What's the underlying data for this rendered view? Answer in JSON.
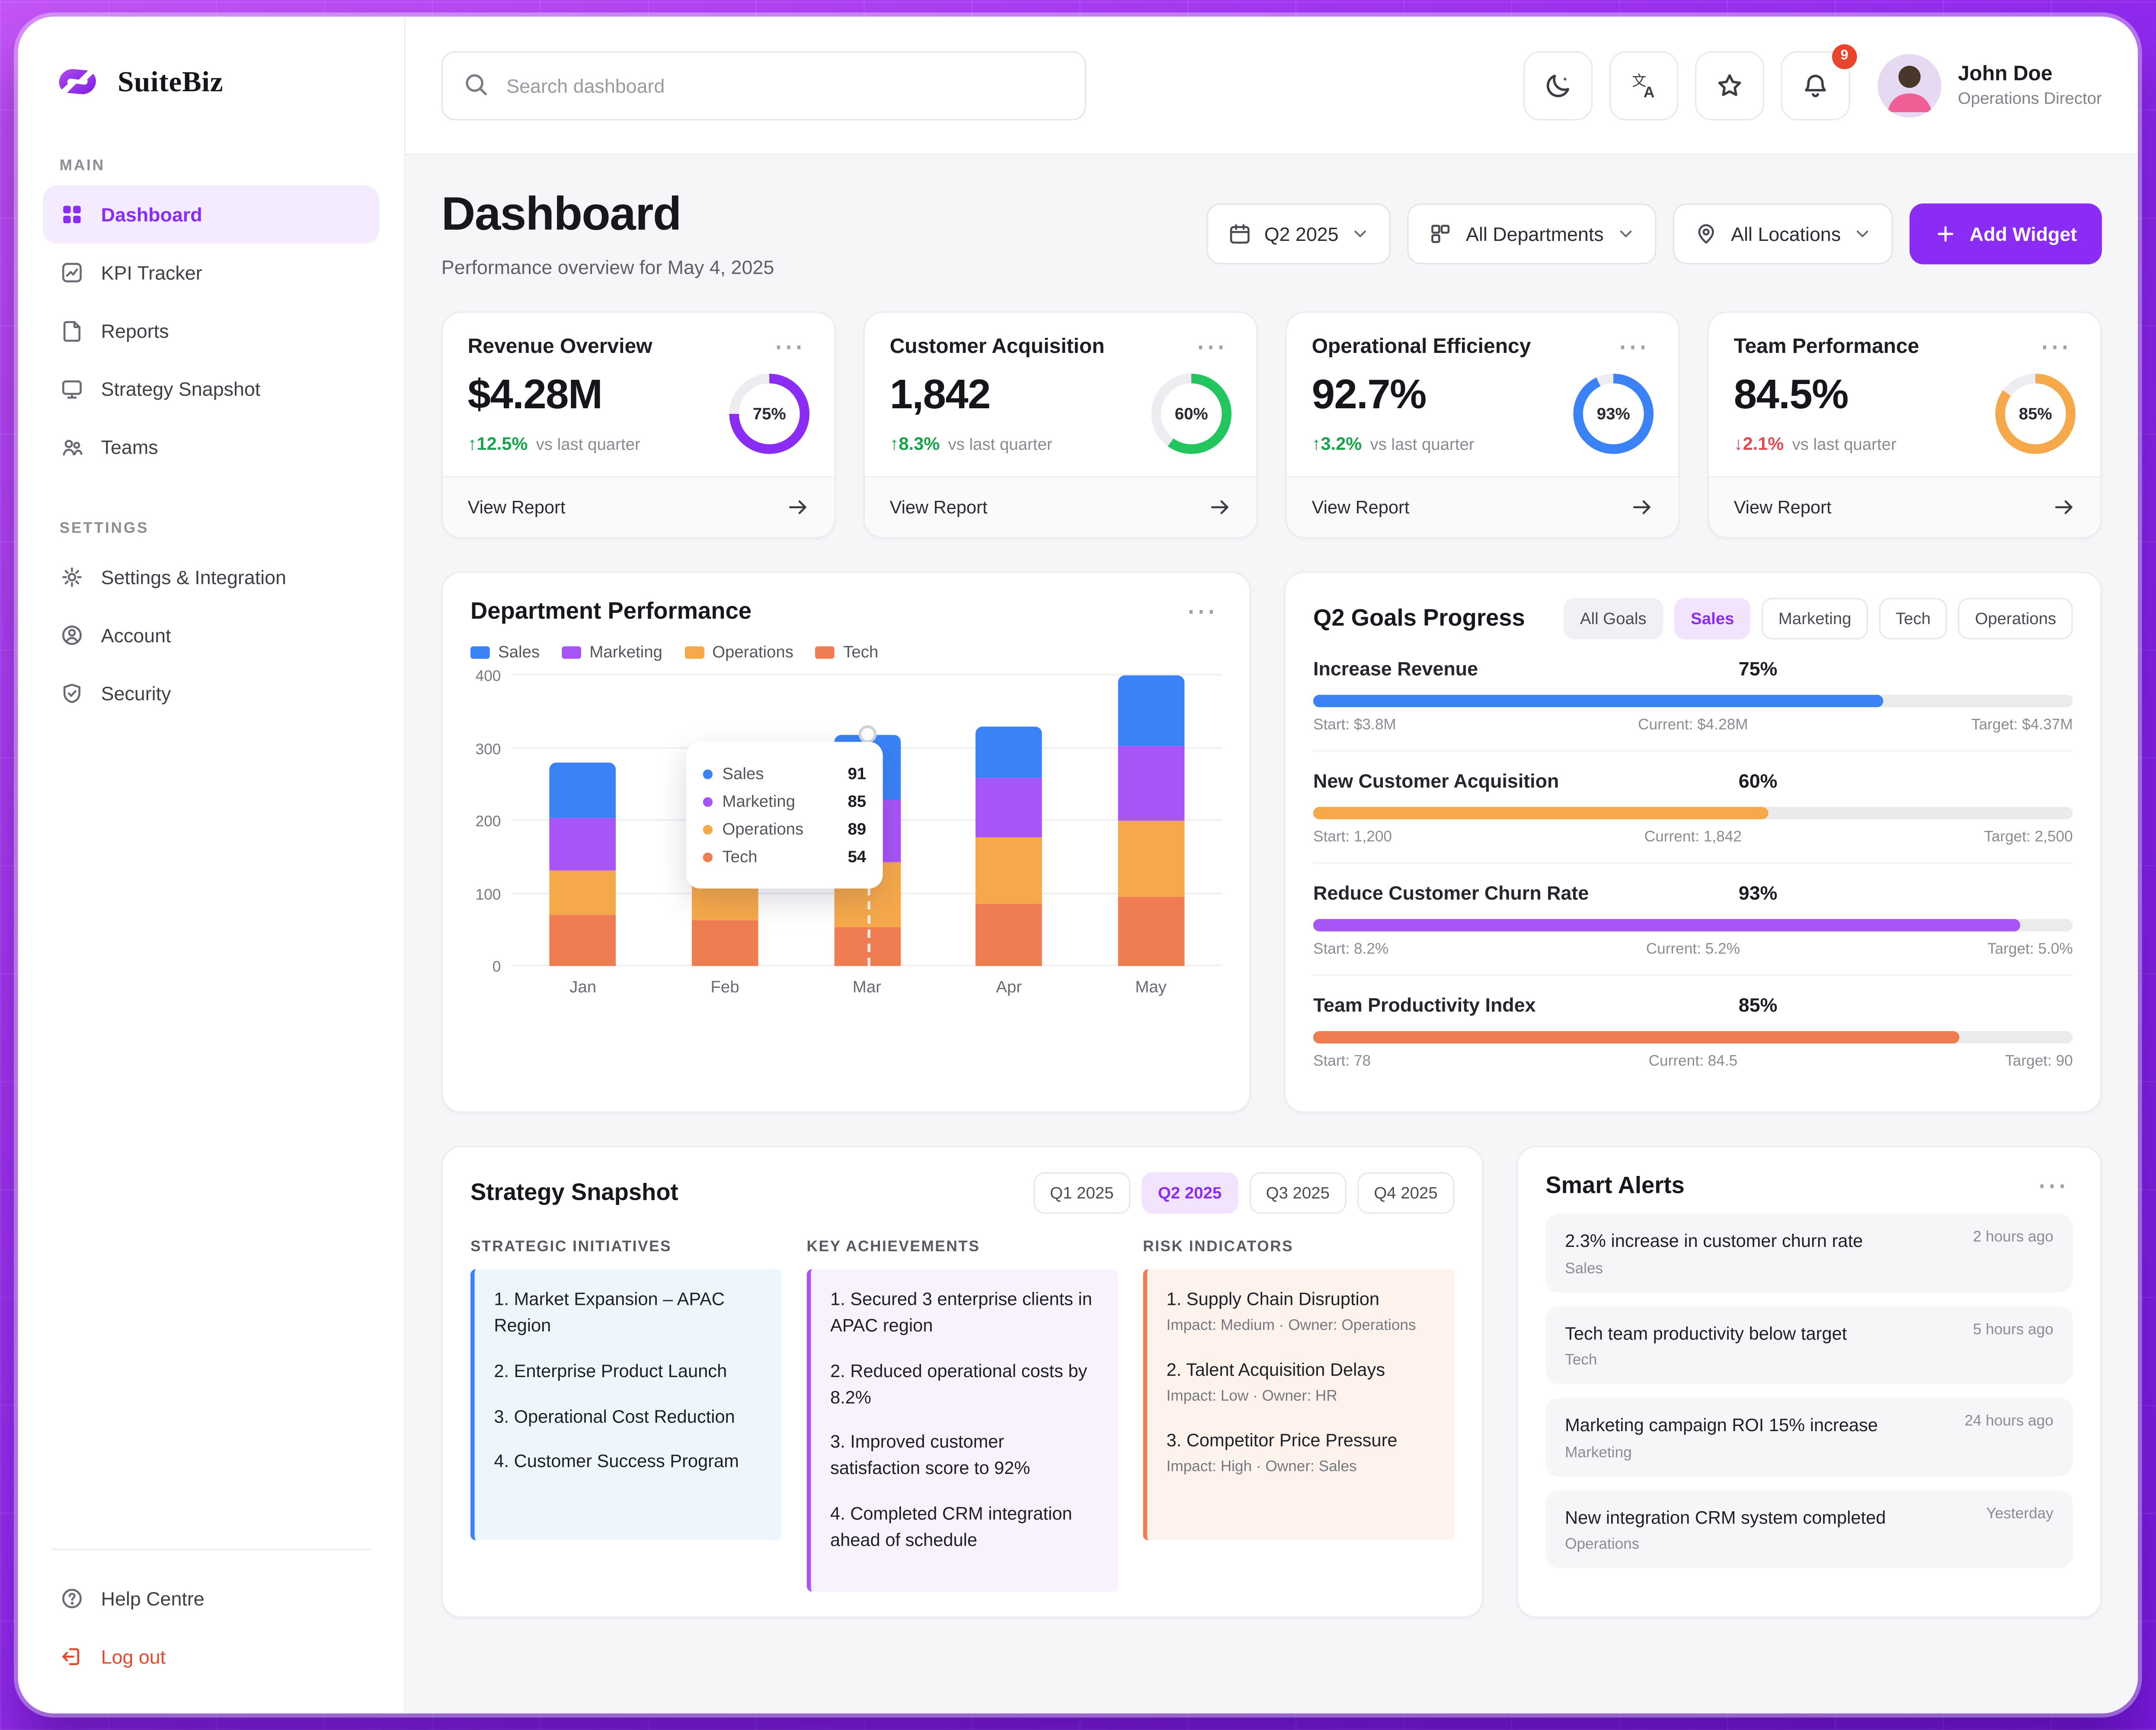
{
  "app": {
    "brand": "SuiteBiz"
  },
  "topbar": {
    "search_placeholder": "Search dashboard",
    "notification_count": "9",
    "user_name": "John Doe",
    "user_role": "Operations Director"
  },
  "sidebar": {
    "section_main": "MAIN",
    "section_settings": "SETTINGS",
    "main_items": [
      {
        "label": "Dashboard"
      },
      {
        "label": "KPI Tracker"
      },
      {
        "label": "Reports"
      },
      {
        "label": "Strategy Snapshot"
      },
      {
        "label": "Teams"
      }
    ],
    "settings_items": [
      {
        "label": "Settings & Integration"
      },
      {
        "label": "Account"
      },
      {
        "label": "Security"
      }
    ],
    "help": "Help Centre",
    "logout": "Log out"
  },
  "header": {
    "title": "Dashboard",
    "subtitle": "Performance overview for May 4, 2025",
    "filter_period": "Q2 2025",
    "filter_departments": "All Departments",
    "filter_locations": "All Locations",
    "add_widget": "Add Widget"
  },
  "kpi_cards": [
    {
      "title": "Revenue Overview",
      "value": "$4.28M",
      "delta": "12.5%",
      "direction": "up",
      "note": "vs last quarter",
      "ring_pct": 75,
      "ring_label": "75%",
      "ring_color": "#8b2cf5",
      "link": "View Report"
    },
    {
      "title": "Customer Acquisition",
      "value": "1,842",
      "delta": "8.3%",
      "direction": "up",
      "note": "vs last quarter",
      "ring_pct": 60,
      "ring_label": "60%",
      "ring_color": "#22c55e",
      "link": "View Report"
    },
    {
      "title": "Operational Efficiency",
      "value": "92.7%",
      "delta": "3.2%",
      "direction": "up",
      "note": "vs last quarter",
      "ring_pct": 93,
      "ring_label": "93%",
      "ring_color": "#3b82f6",
      "link": "View Report"
    },
    {
      "title": "Team Performance",
      "value": "84.5%",
      "delta": "2.1%",
      "direction": "down",
      "note": "vs last quarter",
      "ring_pct": 85,
      "ring_label": "85%",
      "ring_color": "#f6a94b",
      "link": "View Report"
    }
  ],
  "department_performance": {
    "title": "Department Performance",
    "legend": [
      {
        "label": "Sales",
        "color": "#3b82f6"
      },
      {
        "label": "Marketing",
        "color": "#a855f7"
      },
      {
        "label": "Operations",
        "color": "#f6a94b"
      },
      {
        "label": "Tech",
        "color": "#ee7d52"
      }
    ],
    "chart_data": {
      "type": "bar",
      "stacked": true,
      "categories": [
        "Jan",
        "Feb",
        "Mar",
        "Apr",
        "May"
      ],
      "series": [
        {
          "name": "Tech",
          "color": "#ee7d52",
          "values": [
            70,
            62,
            54,
            85,
            95
          ]
        },
        {
          "name": "Operations",
          "color": "#f6a94b",
          "values": [
            62,
            55,
            89,
            92,
            105
          ]
        },
        {
          "name": "Marketing",
          "color": "#a855f7",
          "values": [
            72,
            68,
            85,
            83,
            103
          ]
        },
        {
          "name": "Sales",
          "color": "#3b82f6",
          "values": [
            76,
            65,
            91,
            70,
            97
          ]
        }
      ],
      "ylim": [
        0,
        400
      ],
      "yticks": [
        0,
        100,
        200,
        300,
        400
      ],
      "tooltip": {
        "category": "Mar",
        "rows": [
          {
            "name": "Sales",
            "value": 91,
            "color": "#3b82f6"
          },
          {
            "name": "Marketing",
            "value": 85,
            "color": "#a855f7"
          },
          {
            "name": "Operations",
            "value": 89,
            "color": "#f6a94b"
          },
          {
            "name": "Tech",
            "value": 54,
            "color": "#ee7d52"
          }
        ]
      }
    }
  },
  "goals": {
    "title": "Q2 Goals Progress",
    "tabs": [
      "All Goals",
      "Sales",
      "Marketing",
      "Tech",
      "Operations"
    ],
    "active_tab": "Sales",
    "items": [
      {
        "name": "Increase Revenue",
        "pct": "75%",
        "value": 75,
        "color": "#3b82f6",
        "start": "Start: $3.8M",
        "current": "Current: $4.28M",
        "target": "Target: $4.37M"
      },
      {
        "name": "New Customer Acquisition",
        "pct": "60%",
        "value": 60,
        "color": "#f6a94b",
        "start": "Start: 1,200",
        "current": "Current: 1,842",
        "target": "Target: 2,500"
      },
      {
        "name": "Reduce Customer Churn Rate",
        "pct": "93%",
        "value": 93,
        "color": "#a855f7",
        "start": "Start: 8.2%",
        "current": "Current: 5.2%",
        "target": "Target: 5.0%"
      },
      {
        "name": "Team Productivity Index",
        "pct": "85%",
        "value": 85,
        "color": "#ee7d52",
        "start": "Start: 78",
        "current": "Current: 84.5",
        "target": "Target: 90"
      }
    ]
  },
  "strategy": {
    "title": "Strategy Snapshot",
    "tabs": [
      "Q1 2025",
      "Q2 2025",
      "Q3 2025",
      "Q4 2025"
    ],
    "active_tab": "Q2 2025",
    "columns": [
      {
        "heading": "STRATEGIC INITIATIVES",
        "accent": "#3b82f6",
        "bg": "#eef6fd",
        "items": [
          "Market Expansion – APAC Region",
          "Enterprise Product Launch",
          "Operational Cost Reduction",
          "Customer Success Program"
        ]
      },
      {
        "heading": "KEY ACHIEVEMENTS",
        "accent": "#a855f7",
        "bg": "#f8f1fe",
        "items": [
          "Secured 3 enterprise clients in APAC region",
          "Reduced operational costs by 8.2%",
          "Improved customer satisfaction score to 92%",
          "Completed CRM integration ahead of schedule"
        ]
      },
      {
        "heading": "RISK INDICATORS",
        "accent": "#ee7d52",
        "bg": "#fdf2ec",
        "items": [
          {
            "title": "Supply Chain Disruption",
            "meta": "Impact: Medium · Owner: Operations"
          },
          {
            "title": "Talent Acquisition Delays",
            "meta": "Impact: Low · Owner: HR"
          },
          {
            "title": "Competitor Price Pressure",
            "meta": "Impact: High · Owner: Sales"
          }
        ]
      }
    ]
  },
  "alerts": {
    "title": "Smart Alerts",
    "items": [
      {
        "title": "2.3% increase in customer churn rate",
        "category": "Sales",
        "time": "2 hours ago"
      },
      {
        "title": "Tech team productivity below target",
        "category": "Tech",
        "time": "5 hours ago"
      },
      {
        "title": "Marketing campaign ROI 15% increase",
        "category": "Marketing",
        "time": "24 hours ago"
      },
      {
        "title": "New integration CRM system completed",
        "category": "Operations",
        "time": "Yesterday"
      }
    ]
  }
}
